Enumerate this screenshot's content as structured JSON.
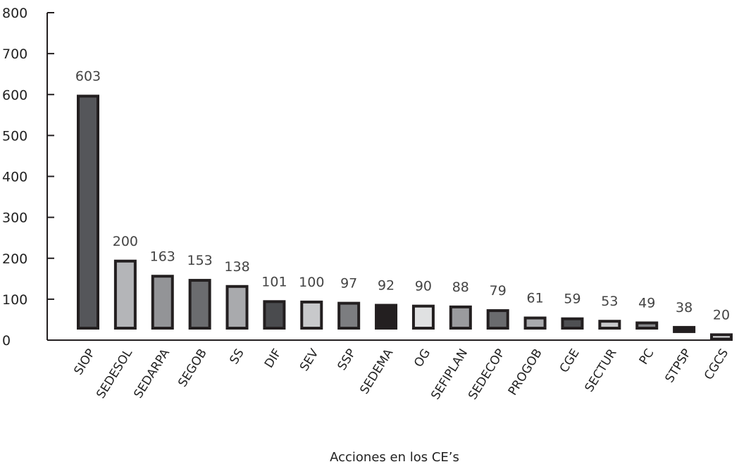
{
  "chart_data": {
    "type": "bar",
    "title": "",
    "xlabel": "Acciones en los CE’s",
    "ylabel": "",
    "ylim": [
      0,
      800
    ],
    "yticks": [
      0,
      100,
      200,
      300,
      400,
      500,
      600,
      700,
      800
    ],
    "grid": false,
    "categories": [
      "SIOP",
      "SEDESOL",
      "SEDARPA",
      "SEGOB",
      "SS",
      "DIF",
      "SEV",
      "SSP",
      "SEDEMA",
      "OG",
      "SEFIPLAN",
      "SEDECOP",
      "PROGOB",
      "CGE",
      "SECTUR",
      "PC",
      "STPSP",
      "CGCS"
    ],
    "values": [
      603,
      200,
      163,
      153,
      138,
      101,
      100,
      97,
      92,
      90,
      88,
      79,
      61,
      59,
      53,
      49,
      38,
      20
    ],
    "colors": [
      "#55565a",
      "#b4b5b8",
      "#939497",
      "#6b6c6f",
      "#a9aaad",
      "#4a4b4e",
      "#c8c9cb",
      "#7c7d80",
      "#231f20",
      "#e0e1e2",
      "#9a9b9e",
      "#6a6b6e",
      "#a9aaad",
      "#4f5053",
      "#c8c9cb",
      "#858689",
      "#231f20",
      "#e6e7e8"
    ],
    "outline_color": "#231f20"
  }
}
